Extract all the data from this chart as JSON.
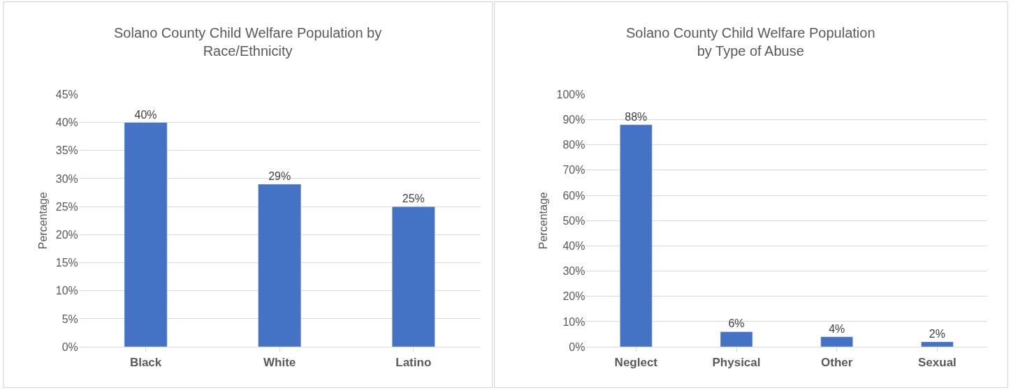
{
  "chart_data": [
    {
      "type": "bar",
      "title": "Solano County Child Welfare Population by Race/Ethnicity",
      "ylabel": "Percentage",
      "categories": [
        "Black",
        "White",
        "Latino"
      ],
      "values": [
        40,
        29,
        25
      ],
      "value_labels": [
        "40%",
        "29%",
        "25%"
      ],
      "color": "#4472c4",
      "ylim": [
        0,
        45
      ],
      "yticks": [
        {
          "value": 0,
          "label": "0%"
        },
        {
          "value": 5,
          "label": "5%"
        },
        {
          "value": 10,
          "label": "10%"
        },
        {
          "value": 15,
          "label": "15%"
        },
        {
          "value": 20,
          "label": "20%"
        },
        {
          "value": 25,
          "label": "25%"
        },
        {
          "value": 30,
          "label": "30%"
        },
        {
          "value": 35,
          "label": "35%"
        },
        {
          "value": 40,
          "label": "40%"
        },
        {
          "value": 45,
          "label": "45%"
        }
      ],
      "grid": "y"
    },
    {
      "type": "bar",
      "title": "Solano County Child Welfare Population by Type of Abuse",
      "ylabel": "Percentage",
      "categories": [
        "Neglect",
        "Physical",
        "Other",
        "Sexual"
      ],
      "values": [
        88,
        6,
        4,
        2
      ],
      "value_labels": [
        "88%",
        "6%",
        "4%",
        "2%"
      ],
      "color": "#4472c4",
      "ylim": [
        0,
        100
      ],
      "yticks": [
        {
          "value": 0,
          "label": "0%"
        },
        {
          "value": 10,
          "label": "10%"
        },
        {
          "value": 20,
          "label": "20%"
        },
        {
          "value": 30,
          "label": "30%"
        },
        {
          "value": 40,
          "label": "40%"
        },
        {
          "value": 50,
          "label": "50%"
        },
        {
          "value": 60,
          "label": "60%"
        },
        {
          "value": 70,
          "label": "70%"
        },
        {
          "value": 80,
          "label": "80%"
        },
        {
          "value": 90,
          "label": "90%"
        },
        {
          "value": 100,
          "label": "100%"
        }
      ],
      "grid": "y"
    }
  ]
}
